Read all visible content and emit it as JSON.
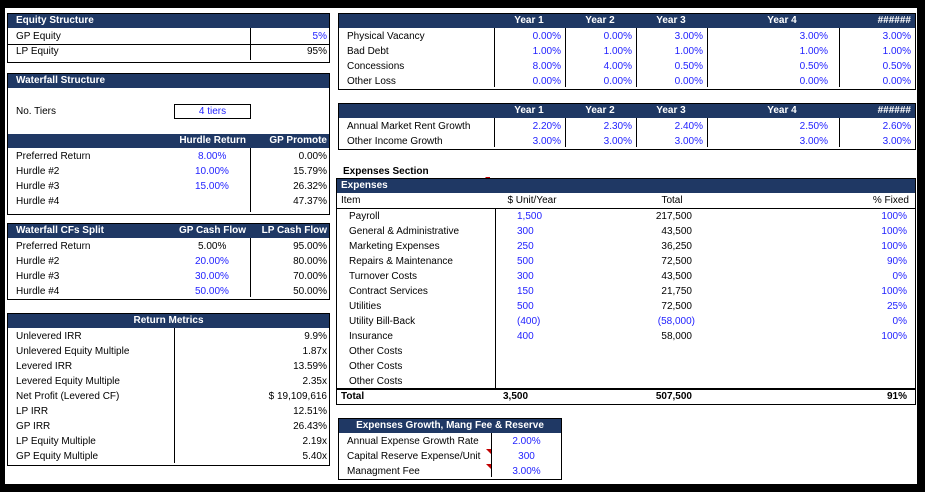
{
  "equity": {
    "title": "Equity Structure",
    "rows": [
      {
        "label": "GP Equity",
        "value": "5%"
      },
      {
        "label": "LP Equity",
        "value": "95%"
      }
    ]
  },
  "waterfall": {
    "title": "Waterfall Structure",
    "tiers_label": "No. Tiers",
    "tiers_value": "4 tiers"
  },
  "hurdle": {
    "col1": "Hurdle Return",
    "col2": "GP Promote",
    "rows": [
      {
        "label": "Preferred Return",
        "a": "8.00%",
        "b": "0.00%"
      },
      {
        "label": "Hurdle #2",
        "a": "10.00%",
        "b": "15.79%"
      },
      {
        "label": "Hurdle #3",
        "a": "15.00%",
        "b": "26.32%"
      },
      {
        "label": "Hurdle #4",
        "a": "",
        "b": "47.37%"
      }
    ]
  },
  "split": {
    "title": "Waterfall CFs Split",
    "col1": "GP Cash Flow",
    "col2": "LP Cash Flow",
    "rows": [
      {
        "label": "Preferred Return",
        "a": "5.00%",
        "b": "95.00%"
      },
      {
        "label": "Hurdle #2",
        "a": "20.00%",
        "b": "80.00%"
      },
      {
        "label": "Hurdle #3",
        "a": "30.00%",
        "b": "70.00%"
      },
      {
        "label": "Hurdle #4",
        "a": "50.00%",
        "b": "50.00%"
      }
    ]
  },
  "returns": {
    "title": "Return Metrics",
    "rows": [
      {
        "label": "Unlevered IRR",
        "value": "9.9%"
      },
      {
        "label": "Unlevered Equity Multiple",
        "value": "1.87x"
      },
      {
        "label": "Levered IRR",
        "value": "13.59%"
      },
      {
        "label": "Levered Equity Multiple",
        "value": "2.35x"
      },
      {
        "label": "Net Profit (Levered CF)",
        "value": "$ 19,109,616"
      },
      {
        "label": "LP IRR",
        "value": "12.51%"
      },
      {
        "label": "GP  IRR",
        "value": "26.43%"
      },
      {
        "label": "LP Equity Multiple",
        "value": "2.19x"
      },
      {
        "label": "GP Equity Multiple",
        "value": "5.40x"
      }
    ]
  },
  "vacancy": {
    "years": [
      "Year 1",
      "Year 2",
      "Year 3",
      "Year 4",
      "######"
    ],
    "rows": [
      {
        "label": "Physical Vacancy",
        "vals": [
          "0.00%",
          "0.00%",
          "3.00%",
          "3.00%",
          "3.00%"
        ]
      },
      {
        "label": "Bad Debt",
        "vals": [
          "1.00%",
          "1.00%",
          "1.00%",
          "1.00%",
          "1.00%"
        ]
      },
      {
        "label": "Concessions",
        "vals": [
          "8.00%",
          "4.00%",
          "0.50%",
          "0.50%",
          "0.50%"
        ]
      },
      {
        "label": "Other Loss",
        "vals": [
          "0.00%",
          "0.00%",
          "0.00%",
          "0.00%",
          "0.00%"
        ]
      }
    ]
  },
  "growth": {
    "years": [
      "Year 1",
      "Year 2",
      "Year 3",
      "Year 4",
      "######"
    ],
    "rows": [
      {
        "label": "Annual Market Rent Growth",
        "vals": [
          "2.20%",
          "2.30%",
          "2.40%",
          "2.50%",
          "2.60%"
        ]
      },
      {
        "label": "Other Income Growth",
        "vals": [
          "3.00%",
          "3.00%",
          "3.00%",
          "3.00%",
          "3.00%"
        ]
      }
    ]
  },
  "expenses": {
    "section_title": "Expenses Section",
    "header": "Expenses",
    "col_item": "Item",
    "col_unit": "$ Unit/Year",
    "col_total": "Total",
    "col_fixed": "% Fixed",
    "rows": [
      {
        "label": "Payroll",
        "unit": "1,500",
        "total": "217,500",
        "fixed": "100%"
      },
      {
        "label": "General & Administrative",
        "unit": "300",
        "total": "43,500",
        "fixed": "100%"
      },
      {
        "label": "Marketing Expenses",
        "unit": "250",
        "total": "36,250",
        "fixed": "100%"
      },
      {
        "label": "Repairs & Maintenance",
        "unit": "500",
        "total": "72,500",
        "fixed": "90%"
      },
      {
        "label": "Turnover Costs",
        "unit": "300",
        "total": "43,500",
        "fixed": "0%"
      },
      {
        "label": "Contract Services",
        "unit": "150",
        "total": "21,750",
        "fixed": "100%"
      },
      {
        "label": "Utilities",
        "unit": "500",
        "total": "72,500",
        "fixed": "25%"
      },
      {
        "label": "Utility Bill-Back",
        "unit": "(400)",
        "total": "(58,000)",
        "fixed": "0%"
      },
      {
        "label": "Insurance",
        "unit": "400",
        "total": "58,000",
        "fixed": "100%"
      },
      {
        "label": "Other Costs",
        "unit": "",
        "total": "",
        "fixed": ""
      },
      {
        "label": "Other Costs",
        "unit": "",
        "total": "",
        "fixed": ""
      },
      {
        "label": "Other Costs",
        "unit": "",
        "total": "",
        "fixed": ""
      }
    ],
    "total_label": "Total",
    "total_unit": "3,500",
    "total_total": "507,500",
    "total_fixed": "91%"
  },
  "mgmt": {
    "title": "Expenses Growth, Mang Fee & Reserve",
    "rows": [
      {
        "label": "Annual Expense Growth Rate",
        "value": "2.00%"
      },
      {
        "label": "Capital Reserve Expense/Unit",
        "value": "300"
      },
      {
        "label": "Managment Fee",
        "value": "3.00%"
      }
    ]
  }
}
